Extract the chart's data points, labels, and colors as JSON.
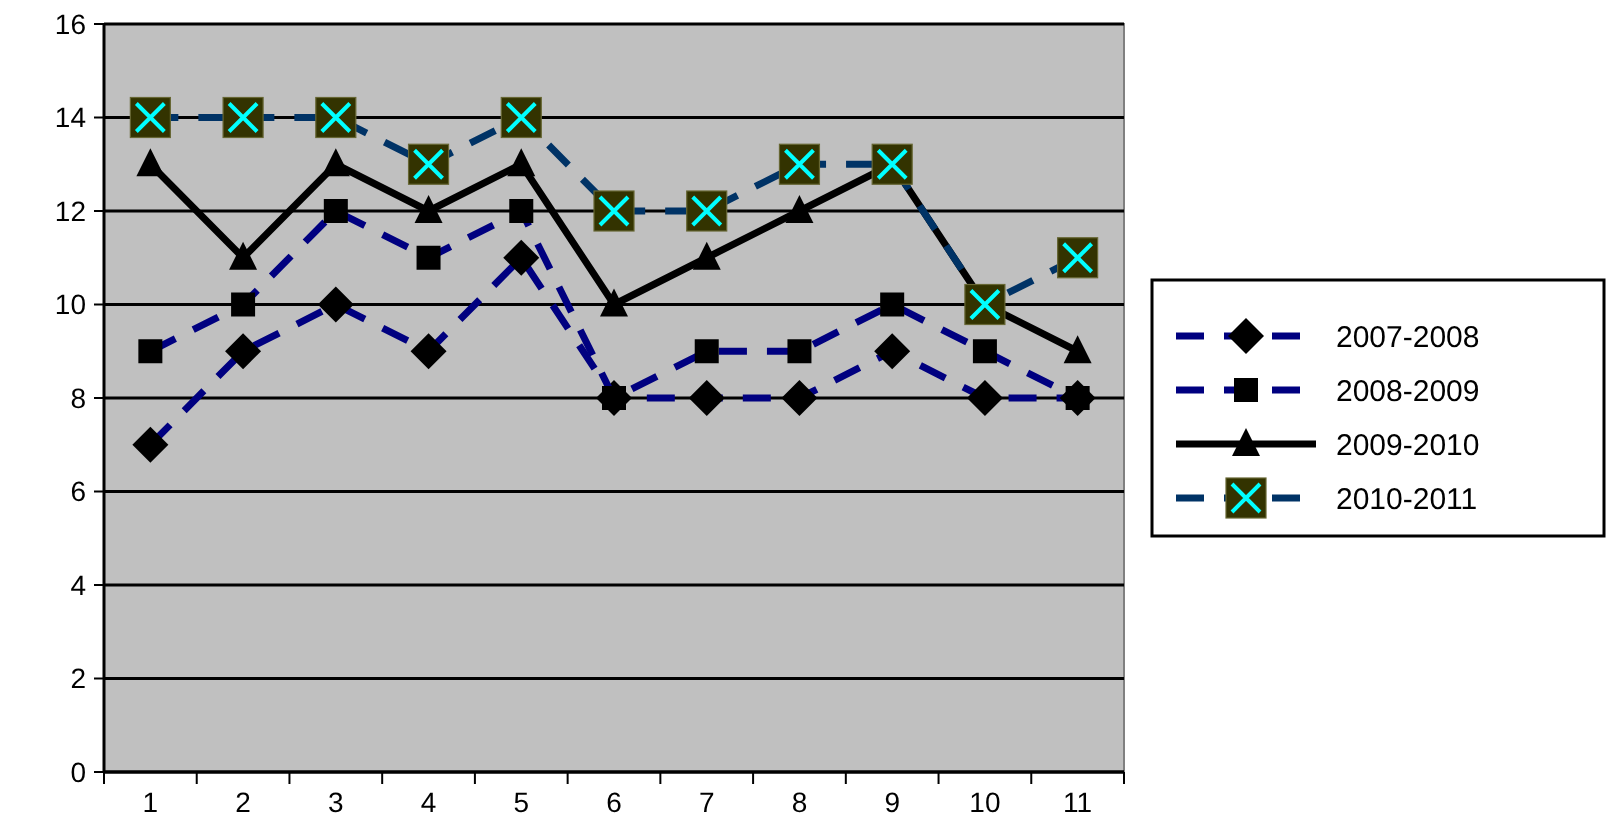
{
  "chart_data": {
    "type": "line",
    "categories": [
      "1",
      "2",
      "3",
      "4",
      "5",
      "6",
      "7",
      "8",
      "9",
      "10",
      "11"
    ],
    "series": [
      {
        "name": "2007-2008",
        "color": "#000080",
        "line_style": "dashed",
        "marker": "diamond",
        "values": [
          7,
          9,
          10,
          9,
          11,
          8,
          8,
          8,
          9,
          8,
          8
        ]
      },
      {
        "name": "2008-2009",
        "color": "#000080",
        "line_style": "dashed",
        "marker": "square",
        "values": [
          9,
          10,
          12,
          11,
          12,
          8,
          9,
          9,
          10,
          9,
          8
        ]
      },
      {
        "name": "2009-2010",
        "color": "#000000",
        "line_style": "solid",
        "marker": "triangle",
        "values": [
          13,
          11,
          13,
          12,
          13,
          10,
          11,
          12,
          13,
          10,
          9
        ]
      },
      {
        "name": "2010-2011",
        "color": "#003366",
        "line_style": "dashed",
        "marker": "square",
        "values": [
          14,
          14,
          14,
          13,
          14,
          12,
          12,
          13,
          13,
          10,
          11
        ]
      }
    ],
    "ylim": [
      0,
      16
    ],
    "yticks": [
      0,
      2,
      4,
      6,
      8,
      10,
      12,
      14,
      16
    ],
    "grid": "y",
    "legend": "right"
  }
}
